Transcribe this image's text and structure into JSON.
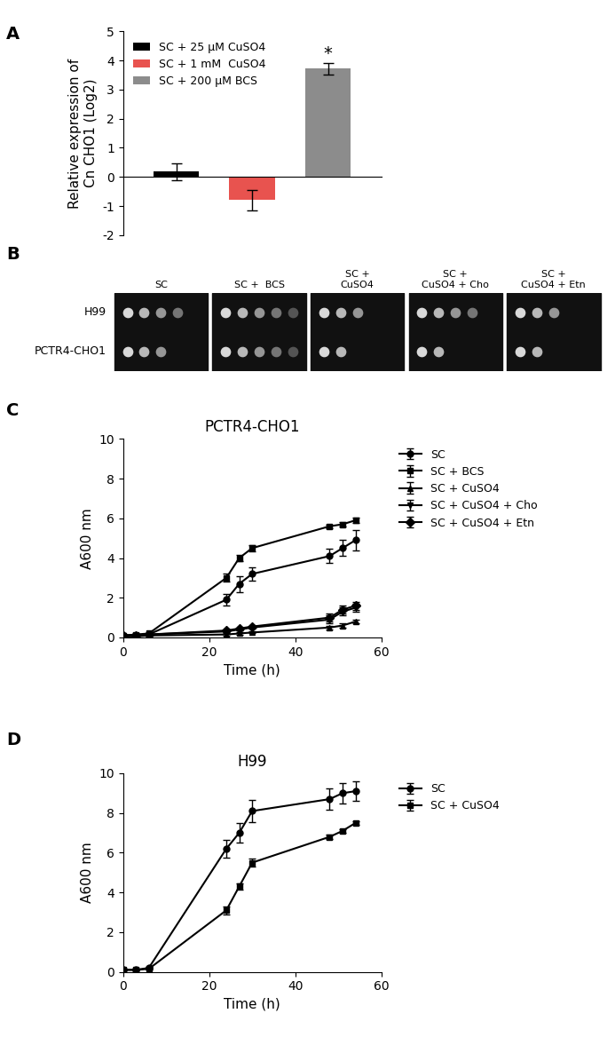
{
  "panel_labels": [
    "A",
    "B",
    "C",
    "D"
  ],
  "chart_data": [
    {
      "type": "bar",
      "categories": [
        "SC + 25 µM CuSO4",
        "SC + 1 mM  CuSO4",
        "SC + 200 µM BCS"
      ],
      "values": [
        0.18,
        -0.8,
        3.72
      ],
      "errors": [
        0.3,
        0.35,
        0.2
      ],
      "colors": [
        "#000000",
        "#e8534f",
        "#8c8c8c"
      ],
      "ylabel": "Relative expression of\nCn CHO1 (Log2)",
      "ylim": [
        -2,
        5
      ],
      "yticks": [
        -2,
        -1,
        0,
        1,
        2,
        3,
        4,
        5
      ],
      "legend": "upper left",
      "tick_labels": "y",
      "annotations": [
        {
          "category": "SC + 200 µM BCS",
          "text": "*"
        }
      ]
    },
    {
      "type": "line",
      "title": "PCTR4-CHO1",
      "x": [
        0,
        3,
        6,
        24,
        27,
        30,
        48,
        51,
        54
      ],
      "series": [
        {
          "name": "SC",
          "color": "#000000",
          "marker": "circle",
          "line_style": "solid",
          "values": [
            0.1,
            0.1,
            0.15,
            1.9,
            2.7,
            3.2,
            4.1,
            4.5,
            4.9
          ],
          "errors": [
            0.05,
            0.05,
            0.05,
            0.3,
            0.4,
            0.35,
            0.35,
            0.4,
            0.5
          ]
        },
        {
          "name": "SC + BCS",
          "color": "#000000",
          "marker": "square",
          "line_style": "solid",
          "values": [
            0.1,
            0.15,
            0.2,
            3.0,
            4.0,
            4.5,
            5.6,
            5.7,
            5.9
          ],
          "errors": [
            0.05,
            0.05,
            0.05,
            0.2,
            0.15,
            0.15,
            0.1,
            0.1,
            0.15
          ]
        },
        {
          "name": "SC + CuSO4",
          "color": "#000000",
          "marker": "triangle_up",
          "line_style": "solid",
          "values": [
            0.05,
            0.05,
            0.1,
            0.15,
            0.2,
            0.25,
            0.5,
            0.6,
            0.8
          ],
          "errors": [
            0.02,
            0.02,
            0.02,
            0.05,
            0.05,
            0.05,
            0.1,
            0.1,
            0.1
          ]
        },
        {
          "name": "SC + CuSO4 + Cho",
          "color": "#000000",
          "marker": "triangle_down",
          "line_style": "solid",
          "values": [
            0.1,
            0.1,
            0.15,
            0.3,
            0.4,
            0.5,
            0.9,
            1.3,
            1.5
          ],
          "errors": [
            0.02,
            0.02,
            0.02,
            0.05,
            0.05,
            0.05,
            0.2,
            0.2,
            0.2
          ]
        },
        {
          "name": "SC + CuSO4 + Etn",
          "color": "#000000",
          "marker": "diamond",
          "line_style": "solid",
          "values": [
            0.1,
            0.1,
            0.15,
            0.35,
            0.45,
            0.55,
            1.0,
            1.4,
            1.6
          ],
          "errors": [
            0.02,
            0.02,
            0.02,
            0.05,
            0.05,
            0.05,
            0.2,
            0.2,
            0.2
          ]
        }
      ],
      "xlabel": "Time (h)",
      "ylabel": "A600 nm",
      "xlim": [
        0,
        60
      ],
      "xticks": [
        0,
        20,
        40,
        60
      ],
      "ylim": [
        0,
        10
      ],
      "yticks": [
        0,
        2,
        4,
        6,
        8,
        10
      ],
      "legend": "right"
    },
    {
      "type": "line",
      "title": "H99",
      "x": [
        0,
        3,
        6,
        24,
        27,
        30,
        48,
        51,
        54
      ],
      "series": [
        {
          "name": "SC",
          "color": "#000000",
          "marker": "circle",
          "line_style": "solid",
          "values": [
            0.1,
            0.1,
            0.2,
            6.2,
            7.0,
            8.1,
            8.7,
            9.0,
            9.1
          ],
          "errors": [
            0.05,
            0.05,
            0.05,
            0.45,
            0.5,
            0.55,
            0.55,
            0.5,
            0.5
          ]
        },
        {
          "name": "SC + CuSO4",
          "color": "#000000",
          "marker": "square",
          "line_style": "solid",
          "values": [
            0.1,
            0.1,
            0.15,
            3.1,
            4.3,
            5.5,
            6.8,
            7.1,
            7.5
          ],
          "errors": [
            0.05,
            0.05,
            0.05,
            0.2,
            0.15,
            0.2,
            0.1,
            0.1,
            0.1
          ]
        }
      ],
      "xlabel": "Time (h)",
      "ylabel": "A600 nm",
      "xlim": [
        0,
        60
      ],
      "xticks": [
        0,
        20,
        40,
        60
      ],
      "ylim": [
        0,
        10
      ],
      "yticks": [
        0,
        2,
        4,
        6,
        8,
        10
      ],
      "legend": "right"
    }
  ],
  "spot_assay": {
    "strains": [
      "H99",
      "PCTR4-CHO1"
    ],
    "conditions": [
      "SC",
      "SC +  BCS",
      "SC +\nCuSO4",
      "SC +\nCuSO4 + Cho",
      "SC +\nCuSO4 + Etn"
    ],
    "spots_visible": [
      [
        4,
        5,
        3,
        4,
        3
      ],
      [
        3,
        5,
        2,
        2,
        2
      ]
    ]
  }
}
